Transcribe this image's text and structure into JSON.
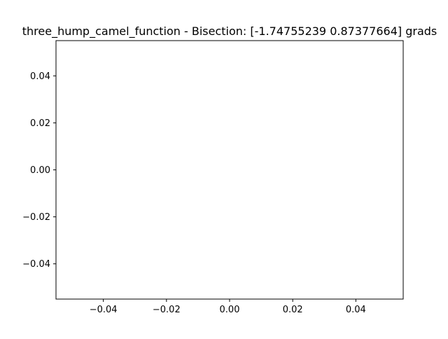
{
  "chart_data": {
    "type": "line",
    "title": "three_hump_camel_function - Bisection: [-1.74755239  0.87377664] grads",
    "xlabel": "",
    "ylabel": "",
    "xlim": [
      -0.055,
      0.055
    ],
    "ylim": [
      -0.055,
      0.055
    ],
    "x_ticks": [
      -0.04,
      -0.02,
      0.0,
      0.02,
      0.04
    ],
    "x_tick_labels": [
      "−0.04",
      "−0.02",
      "0.00",
      "0.02",
      "0.04"
    ],
    "y_ticks": [
      0.04,
      0.02,
      0.0,
      -0.02,
      -0.04
    ],
    "y_tick_labels": [
      "0.04",
      "0.02",
      "0.00",
      "−0.02",
      "−0.04"
    ],
    "grid": false,
    "legend": null,
    "series": []
  }
}
